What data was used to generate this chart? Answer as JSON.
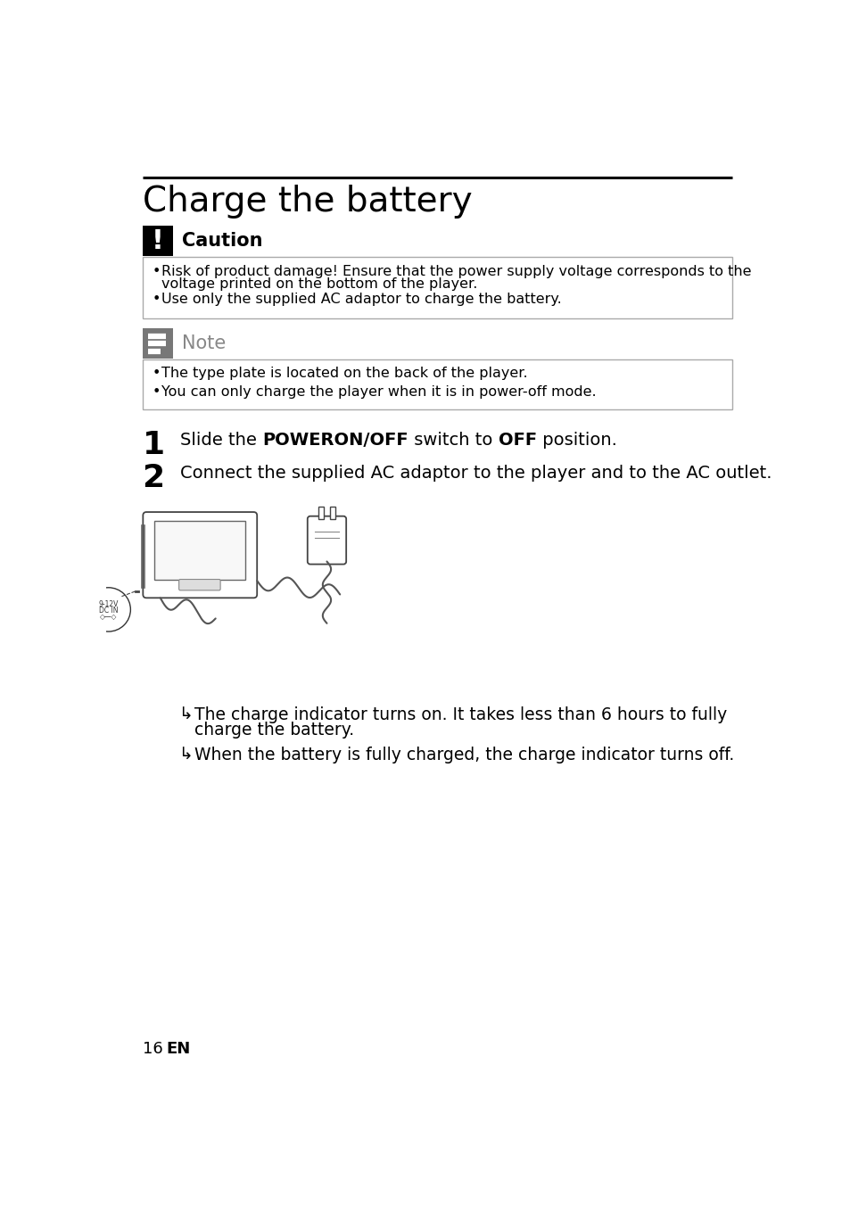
{
  "title": "Charge the battery",
  "caution_label": "Caution",
  "caution_bullet1": "Risk of product damage! Ensure that the power supply voltage corresponds to the",
  "caution_bullet1b": "voltage printed on the bottom of the player.",
  "caution_bullet2": "Use only the supplied AC adaptor to charge the battery.",
  "note_label": "Note",
  "note_bullet1": "The type plate is located on the back of the player.",
  "note_bullet2": "You can only charge the player when it is in power-off mode.",
  "step1_num": "1",
  "step1_pre": "Slide the ",
  "step1_bold1": "POWERON/OFF",
  "step1_mid": " switch to ",
  "step1_bold2": "OFF",
  "step1_post": " position.",
  "step2_num": "2",
  "step2_text": "Connect the supplied AC adaptor to the player and to the AC outlet.",
  "result1_text1": "The charge indicator turns on. It takes less than 6 hours to fully",
  "result1_text2": "charge the battery.",
  "result2_text": "When the battery is fully charged, the charge indicator turns off.",
  "page_num": "16",
  "page_lang": "EN",
  "bg_color": "#ffffff",
  "text_color": "#000000",
  "caution_icon_bg": "#000000",
  "note_icon_bg": "#777777",
  "box_border_color": "#aaaaaa"
}
